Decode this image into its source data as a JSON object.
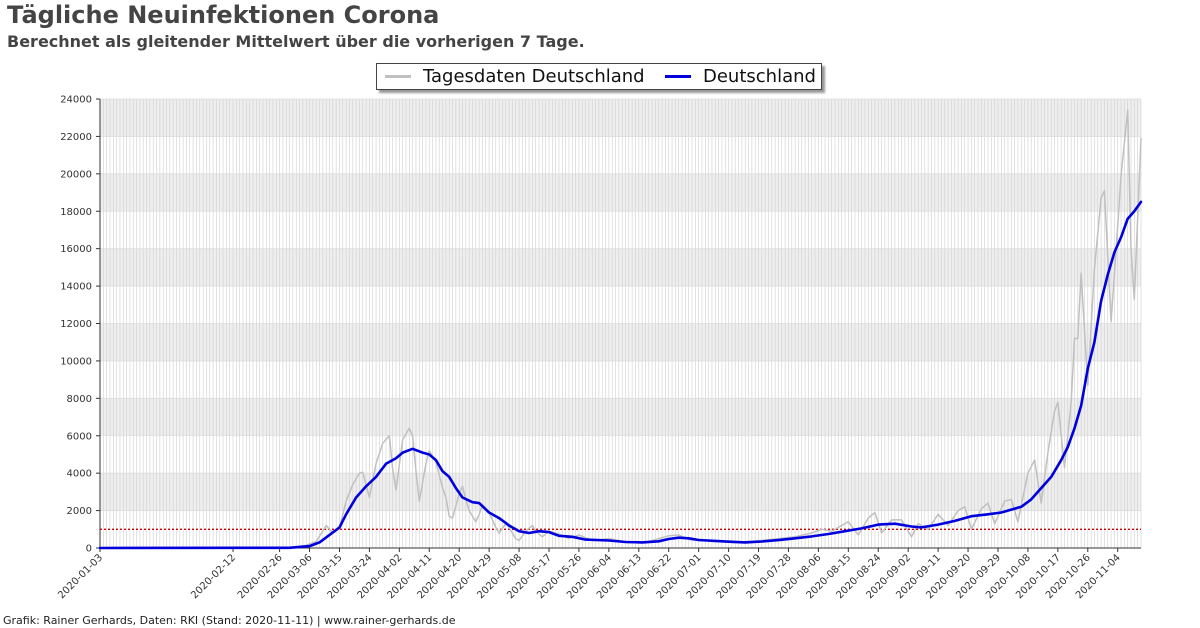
{
  "header": {
    "title": "Tägliche Neuinfektionen Corona",
    "subtitle": "Berechnet als gleitender Mittelwert über die vorherigen 7 Tage."
  },
  "footer": {
    "credit": "Grafik: Rainer Gerhards, Daten: RKI (Stand: 2020-11-11) | www.rainer-gerhards.de"
  },
  "colors": {
    "daily": "#c0c0c0",
    "average": "#0000dd",
    "threshold": "#cc0000",
    "band": "#eeeeee",
    "grid": "#cfcfcf"
  },
  "chart_data": {
    "type": "line",
    "title": "Tägliche Neuinfektionen Corona",
    "subtitle": "Berechnet als gleitender Mittelwert über die vorherigen 7 Tage.",
    "xlabel": "",
    "ylabel": "",
    "ylim": [
      0,
      24000
    ],
    "yticks": [
      0,
      2000,
      4000,
      6000,
      8000,
      10000,
      12000,
      14000,
      16000,
      18000,
      20000,
      22000,
      24000
    ],
    "xticks": [
      "2020-01-03",
      "2020-02-12",
      "2020-02-26",
      "2020-03-06",
      "2020-03-15",
      "2020-03-24",
      "2020-04-02",
      "2020-04-11",
      "2020-04-20",
      "2020-04-29",
      "2020-05-08",
      "2020-05-17",
      "2020-05-26",
      "2020-06-04",
      "2020-06-13",
      "2020-06-22",
      "2020-07-01",
      "2020-07-10",
      "2020-07-19",
      "2020-07-28",
      "2020-08-06",
      "2020-08-15",
      "2020-08-24",
      "2020-09-02",
      "2020-09-11",
      "2020-09-20",
      "2020-09-29",
      "2020-10-08",
      "2020-10-17",
      "2020-10-26",
      "2020-11-04"
    ],
    "grid": true,
    "legend_position": "top-center",
    "threshold": {
      "value": 1000,
      "style": "dotted"
    },
    "series": [
      {
        "name": "Tagesdaten Deutschland",
        "style": "thin-gray",
        "points": [
          [
            "2020-01-03",
            0
          ],
          [
            "2020-03-01",
            30
          ],
          [
            "2020-03-05",
            150
          ],
          [
            "2020-03-08",
            350
          ],
          [
            "2020-03-11",
            1200
          ],
          [
            "2020-03-13",
            800
          ],
          [
            "2020-03-15",
            1100
          ],
          [
            "2020-03-17",
            2500
          ],
          [
            "2020-03-19",
            3400
          ],
          [
            "2020-03-21",
            4000
          ],
          [
            "2020-03-22",
            4050
          ],
          [
            "2020-03-24",
            2700
          ],
          [
            "2020-03-26",
            4500
          ],
          [
            "2020-03-28",
            5600
          ],
          [
            "2020-03-30",
            6000
          ],
          [
            "2020-03-31",
            4200
          ],
          [
            "2020-04-01",
            3100
          ],
          [
            "2020-04-03",
            5800
          ],
          [
            "2020-04-05",
            6400
          ],
          [
            "2020-04-06",
            6000
          ],
          [
            "2020-04-07",
            4100
          ],
          [
            "2020-04-08",
            2500
          ],
          [
            "2020-04-10",
            4500
          ],
          [
            "2020-04-11",
            5200
          ],
          [
            "2020-04-13",
            4600
          ],
          [
            "2020-04-15",
            3200
          ],
          [
            "2020-04-16",
            2700
          ],
          [
            "2020-04-17",
            1700
          ],
          [
            "2020-04-18",
            1600
          ],
          [
            "2020-04-20",
            2900
          ],
          [
            "2020-04-21",
            3300
          ],
          [
            "2020-04-22",
            2600
          ],
          [
            "2020-04-23",
            2000
          ],
          [
            "2020-04-25",
            1400
          ],
          [
            "2020-04-26",
            1800
          ],
          [
            "2020-04-27",
            2300
          ],
          [
            "2020-04-29",
            1900
          ],
          [
            "2020-05-01",
            1100
          ],
          [
            "2020-05-02",
            800
          ],
          [
            "2020-05-04",
            1300
          ],
          [
            "2020-05-05",
            1100
          ],
          [
            "2020-05-06",
            800
          ],
          [
            "2020-05-07",
            500
          ],
          [
            "2020-05-08",
            400
          ],
          [
            "2020-05-10",
            900
          ],
          [
            "2020-05-12",
            1200
          ],
          [
            "2020-05-13",
            900
          ],
          [
            "2020-05-15",
            600
          ],
          [
            "2020-05-17",
            900
          ],
          [
            "2020-05-20",
            750
          ],
          [
            "2020-05-23",
            500
          ],
          [
            "2020-05-26",
            700
          ],
          [
            "2020-05-30",
            400
          ],
          [
            "2020-06-04",
            500
          ],
          [
            "2020-06-10",
            300
          ],
          [
            "2020-06-15",
            300
          ],
          [
            "2020-06-20",
            550
          ],
          [
            "2020-06-22",
            650
          ],
          [
            "2020-06-25",
            700
          ],
          [
            "2020-06-28",
            450
          ],
          [
            "2020-07-01",
            400
          ],
          [
            "2020-07-07",
            350
          ],
          [
            "2020-07-12",
            280
          ],
          [
            "2020-07-15",
            350
          ],
          [
            "2020-07-20",
            400
          ],
          [
            "2020-07-25",
            500
          ],
          [
            "2020-07-30",
            600
          ],
          [
            "2020-08-04",
            800
          ],
          [
            "2020-08-07",
            1000
          ],
          [
            "2020-08-10",
            900
          ],
          [
            "2020-08-13",
            1200
          ],
          [
            "2020-08-15",
            1400
          ],
          [
            "2020-08-18",
            700
          ],
          [
            "2020-08-21",
            1600
          ],
          [
            "2020-08-23",
            1900
          ],
          [
            "2020-08-25",
            800
          ],
          [
            "2020-08-28",
            1500
          ],
          [
            "2020-08-31",
            1500
          ],
          [
            "2020-09-03",
            600
          ],
          [
            "2020-09-05",
            1300
          ],
          [
            "2020-09-08",
            1000
          ],
          [
            "2020-09-11",
            1800
          ],
          [
            "2020-09-14",
            1200
          ],
          [
            "2020-09-17",
            2000
          ],
          [
            "2020-09-19",
            2200
          ],
          [
            "2020-09-21",
            1000
          ],
          [
            "2020-09-24",
            2100
          ],
          [
            "2020-09-26",
            2400
          ],
          [
            "2020-09-28",
            1300
          ],
          [
            "2020-10-01",
            2500
          ],
          [
            "2020-10-03",
            2600
          ],
          [
            "2020-10-05",
            1400
          ],
          [
            "2020-10-08",
            4000
          ],
          [
            "2020-10-10",
            4700
          ],
          [
            "2020-10-12",
            2400
          ],
          [
            "2020-10-14",
            5100
          ],
          [
            "2020-10-16",
            7300
          ],
          [
            "2020-10-17",
            7800
          ],
          [
            "2020-10-19",
            4300
          ],
          [
            "2020-10-21",
            7800
          ],
          [
            "2020-10-22",
            11200
          ],
          [
            "2020-10-23",
            11200
          ],
          [
            "2020-10-24",
            14700
          ],
          [
            "2020-10-26",
            8700
          ],
          [
            "2020-10-28",
            14900
          ],
          [
            "2020-10-30",
            18700
          ],
          [
            "2020-10-31",
            19100
          ],
          [
            "2020-11-02",
            12100
          ],
          [
            "2020-11-04",
            17200
          ],
          [
            "2020-11-05",
            19900
          ],
          [
            "2020-11-07",
            23400
          ],
          [
            "2020-11-08",
            16000
          ],
          [
            "2020-11-09",
            13300
          ],
          [
            "2020-11-11",
            21900
          ]
        ]
      },
      {
        "name": "Deutschland",
        "style": "thick-blue",
        "points": [
          [
            "2020-01-03",
            0
          ],
          [
            "2020-02-29",
            10
          ],
          [
            "2020-03-03",
            60
          ],
          [
            "2020-03-06",
            100
          ],
          [
            "2020-03-09",
            300
          ],
          [
            "2020-03-12",
            700
          ],
          [
            "2020-03-15",
            1100
          ],
          [
            "2020-03-17",
            1800
          ],
          [
            "2020-03-20",
            2700
          ],
          [
            "2020-03-23",
            3300
          ],
          [
            "2020-03-26",
            3800
          ],
          [
            "2020-03-29",
            4500
          ],
          [
            "2020-04-01",
            4800
          ],
          [
            "2020-04-03",
            5100
          ],
          [
            "2020-04-06",
            5300
          ],
          [
            "2020-04-09",
            5100
          ],
          [
            "2020-04-11",
            5000
          ],
          [
            "2020-04-13",
            4700
          ],
          [
            "2020-04-15",
            4100
          ],
          [
            "2020-04-17",
            3800
          ],
          [
            "2020-04-19",
            3200
          ],
          [
            "2020-04-21",
            2700
          ],
          [
            "2020-04-24",
            2450
          ],
          [
            "2020-04-26",
            2400
          ],
          [
            "2020-04-29",
            1900
          ],
          [
            "2020-05-02",
            1600
          ],
          [
            "2020-05-05",
            1200
          ],
          [
            "2020-05-08",
            900
          ],
          [
            "2020-05-11",
            800
          ],
          [
            "2020-05-14",
            900
          ],
          [
            "2020-05-17",
            850
          ],
          [
            "2020-05-20",
            650
          ],
          [
            "2020-05-24",
            600
          ],
          [
            "2020-05-28",
            450
          ],
          [
            "2020-06-04",
            400
          ],
          [
            "2020-06-09",
            320
          ],
          [
            "2020-06-14",
            300
          ],
          [
            "2020-06-19",
            360
          ],
          [
            "2020-06-22",
            480
          ],
          [
            "2020-06-25",
            550
          ],
          [
            "2020-06-28",
            520
          ],
          [
            "2020-07-01",
            430
          ],
          [
            "2020-07-06",
            380
          ],
          [
            "2020-07-11",
            330
          ],
          [
            "2020-07-15",
            300
          ],
          [
            "2020-07-20",
            350
          ],
          [
            "2020-07-25",
            420
          ],
          [
            "2020-07-30",
            520
          ],
          [
            "2020-08-04",
            620
          ],
          [
            "2020-08-09",
            750
          ],
          [
            "2020-08-14",
            900
          ],
          [
            "2020-08-19",
            1050
          ],
          [
            "2020-08-24",
            1250
          ],
          [
            "2020-08-29",
            1300
          ],
          [
            "2020-09-03",
            1150
          ],
          [
            "2020-09-06",
            1100
          ],
          [
            "2020-09-11",
            1250
          ],
          [
            "2020-09-16",
            1450
          ],
          [
            "2020-09-21",
            1700
          ],
          [
            "2020-09-26",
            1800
          ],
          [
            "2020-09-30",
            1900
          ],
          [
            "2020-10-03",
            2050
          ],
          [
            "2020-10-06",
            2200
          ],
          [
            "2020-10-09",
            2600
          ],
          [
            "2020-10-12",
            3200
          ],
          [
            "2020-10-15",
            3800
          ],
          [
            "2020-10-18",
            4700
          ],
          [
            "2020-10-20",
            5400
          ],
          [
            "2020-10-22",
            6400
          ],
          [
            "2020-10-24",
            7600
          ],
          [
            "2020-10-26",
            9600
          ],
          [
            "2020-10-28",
            11000
          ],
          [
            "2020-10-30",
            13200
          ],
          [
            "2020-11-01",
            14600
          ],
          [
            "2020-11-03",
            15800
          ],
          [
            "2020-11-05",
            16600
          ],
          [
            "2020-11-07",
            17600
          ],
          [
            "2020-11-09",
            18000
          ],
          [
            "2020-11-11",
            18500
          ]
        ]
      }
    ]
  }
}
